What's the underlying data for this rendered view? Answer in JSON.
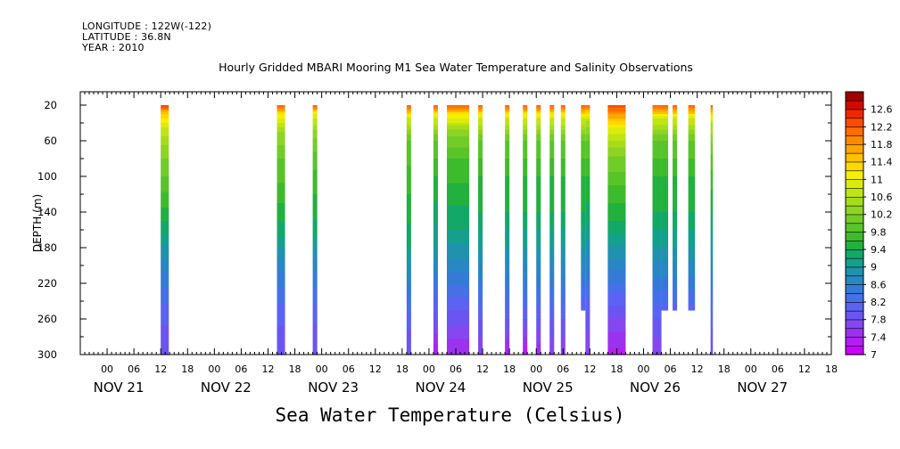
{
  "header": {
    "longitude": "LONGITUDE : 122W(-122)",
    "latitude": "LATITUDE : 36.8N",
    "year": "YEAR : 2010"
  },
  "title": "Hourly Gridded MBARI Mooring M1 Sea Water Temperature and Salinity Observations",
  "variable_title": "Sea Water Temperature (Celsius)",
  "chart_data": {
    "type": "heatmap",
    "title": "Hourly Gridded MBARI Mooring M1 Sea Water Temperature and Salinity Observations",
    "variable": "Sea Water Temperature (Celsius)",
    "xlabel": "",
    "ylabel": "DEPTH (m)",
    "y_reversed": true,
    "xlim_hours_since_nov20_18": [
      0,
      168
    ],
    "ylim": [
      300,
      5
    ],
    "x_tick_labels": [
      "00",
      "06",
      "12",
      "18",
      "00",
      "06",
      "12",
      "18",
      "00",
      "06",
      "12",
      "18",
      "00",
      "06",
      "12",
      "18",
      "00",
      "06",
      "12",
      "18",
      "00",
      "06",
      "12",
      "18",
      "00",
      "06",
      "12",
      "18"
    ],
    "date_labels": [
      "NOV 21",
      "NOV 22",
      "NOV 23",
      "NOV 24",
      "NOV 25",
      "NOV 26",
      "NOV 27"
    ],
    "y_ticks": [
      20,
      60,
      100,
      140,
      180,
      220,
      260,
      300
    ],
    "colorbar": {
      "levels": [
        7,
        7.2,
        7.4,
        7.6,
        7.8,
        8,
        8.2,
        8.4,
        8.6,
        8.8,
        9,
        9.2,
        9.4,
        9.6,
        9.8,
        10,
        10.2,
        10.4,
        10.6,
        10.8,
        11,
        11.2,
        11.4,
        11.6,
        11.8,
        12,
        12.2,
        12.4,
        12.6,
        12.8
      ],
      "tick_labels": [
        "7",
        "7.4",
        "7.8",
        "8.2",
        "8.6",
        "9",
        "9.4",
        "9.8",
        "10.2",
        "10.6",
        "11",
        "11.4",
        "11.8",
        "12.2",
        "12.6"
      ],
      "colors": [
        "#cc00ff",
        "#b41ef5",
        "#9b33ee",
        "#8447f0",
        "#6b55f2",
        "#5a63f2",
        "#4570e8",
        "#347bd8",
        "#2887c4",
        "#1f92ae",
        "#14a08c",
        "#13a868",
        "#22b03e",
        "#3ebb2c",
        "#58c42a",
        "#72cc28",
        "#8ed424",
        "#a6dc1c",
        "#c0e414",
        "#dcec0a",
        "#f5f000",
        "#ffd800",
        "#ffc000",
        "#ffa600",
        "#ff8a00",
        "#ff6c00",
        "#ff4c00",
        "#ef2800",
        "#d00a00",
        "#a00000"
      ]
    },
    "columns": [
      {
        "t0": 18.0,
        "t1": 19.8,
        "max_depth": 300,
        "profile": [
          [
            20,
            12.4
          ],
          [
            30,
            11.4
          ],
          [
            45,
            10.8
          ],
          [
            70,
            10.3
          ],
          [
            110,
            9.9
          ],
          [
            150,
            9.4
          ],
          [
            200,
            8.7
          ],
          [
            250,
            8.1
          ],
          [
            300,
            7.8
          ]
        ]
      },
      {
        "t0": 44.0,
        "t1": 45.8,
        "max_depth": 300,
        "profile": [
          [
            20,
            12.3
          ],
          [
            30,
            11.2
          ],
          [
            50,
            10.4
          ],
          [
            80,
            10.0
          ],
          [
            120,
            9.7
          ],
          [
            160,
            9.3
          ],
          [
            200,
            8.7
          ],
          [
            250,
            8.1
          ],
          [
            300,
            7.8
          ]
        ]
      },
      {
        "t0": 52.0,
        "t1": 53.0,
        "max_depth": 300,
        "profile": [
          [
            20,
            12.3
          ],
          [
            30,
            11.0
          ],
          [
            50,
            10.3
          ],
          [
            80,
            9.9
          ],
          [
            120,
            9.6
          ],
          [
            160,
            9.3
          ],
          [
            200,
            8.7
          ],
          [
            250,
            8.1
          ],
          [
            300,
            7.8
          ]
        ]
      },
      {
        "t0": 73.0,
        "t1": 74.0,
        "max_depth": 300,
        "profile": [
          [
            20,
            12.3
          ],
          [
            35,
            10.8
          ],
          [
            60,
            10.0
          ],
          [
            100,
            9.7
          ],
          [
            140,
            9.5
          ],
          [
            180,
            9.2
          ],
          [
            220,
            8.6
          ],
          [
            260,
            8.1
          ],
          [
            300,
            7.8
          ]
        ]
      },
      {
        "t0": 79.0,
        "t1": 80.0,
        "max_depth": 300,
        "profile": [
          [
            20,
            12.2
          ],
          [
            35,
            10.8
          ],
          [
            60,
            10.0
          ],
          [
            100,
            9.6
          ],
          [
            140,
            9.3
          ],
          [
            180,
            9.0
          ],
          [
            220,
            8.4
          ],
          [
            260,
            7.9
          ],
          [
            300,
            7.2
          ]
        ]
      },
      {
        "t0": 82.0,
        "t1": 87.0,
        "max_depth": 300,
        "profile": [
          [
            20,
            12.3
          ],
          [
            30,
            11.2
          ],
          [
            50,
            10.3
          ],
          [
            80,
            9.8
          ],
          [
            120,
            9.5
          ],
          [
            160,
            9.2
          ],
          [
            200,
            8.7
          ],
          [
            250,
            8.0
          ],
          [
            300,
            7.4
          ]
        ]
      },
      {
        "t0": 89.0,
        "t1": 90.0,
        "max_depth": 300,
        "profile": [
          [
            20,
            12.2
          ],
          [
            35,
            10.8
          ],
          [
            60,
            10.0
          ],
          [
            100,
            9.6
          ],
          [
            140,
            9.4
          ],
          [
            180,
            9.0
          ],
          [
            220,
            8.5
          ],
          [
            260,
            8.0
          ],
          [
            300,
            7.6
          ]
        ]
      },
      {
        "t0": 95.0,
        "t1": 96.0,
        "max_depth": 300,
        "profile": [
          [
            20,
            12.2
          ],
          [
            35,
            10.8
          ],
          [
            60,
            10.0
          ],
          [
            100,
            9.6
          ],
          [
            140,
            9.4
          ],
          [
            180,
            9.0
          ],
          [
            220,
            8.5
          ],
          [
            260,
            8.0
          ],
          [
            300,
            7.3
          ]
        ]
      },
      {
        "t0": 99.0,
        "t1": 100.0,
        "max_depth": 300,
        "profile": [
          [
            20,
            12.2
          ],
          [
            35,
            10.8
          ],
          [
            60,
            10.0
          ],
          [
            100,
            9.6
          ],
          [
            140,
            9.4
          ],
          [
            180,
            9.0
          ],
          [
            220,
            8.5
          ],
          [
            260,
            8.0
          ],
          [
            300,
            7.2
          ]
        ]
      },
      {
        "t0": 102.0,
        "t1": 103.0,
        "max_depth": 300,
        "profile": [
          [
            20,
            12.2
          ],
          [
            35,
            10.8
          ],
          [
            60,
            10.0
          ],
          [
            100,
            9.6
          ],
          [
            140,
            9.4
          ],
          [
            180,
            9.0
          ],
          [
            220,
            8.5
          ],
          [
            260,
            8.0
          ],
          [
            300,
            7.4
          ]
        ]
      },
      {
        "t0": 105.0,
        "t1": 106.0,
        "max_depth": 300,
        "profile": [
          [
            20,
            12.2
          ],
          [
            35,
            10.8
          ],
          [
            60,
            10.0
          ],
          [
            100,
            9.6
          ],
          [
            140,
            9.4
          ],
          [
            180,
            9.0
          ],
          [
            220,
            8.5
          ],
          [
            260,
            8.0
          ],
          [
            300,
            7.6
          ]
        ]
      },
      {
        "t0": 107.5,
        "t1": 108.5,
        "max_depth": 300,
        "profile": [
          [
            20,
            12.2
          ],
          [
            35,
            10.8
          ],
          [
            60,
            10.0
          ],
          [
            100,
            9.6
          ],
          [
            140,
            9.4
          ],
          [
            180,
            9.0
          ],
          [
            220,
            8.5
          ],
          [
            260,
            8.0
          ],
          [
            300,
            7.6
          ]
        ]
      },
      {
        "t0": 112.0,
        "t1": 113.0,
        "max_depth": 250,
        "profile": [
          [
            20,
            12.3
          ],
          [
            35,
            10.8
          ],
          [
            60,
            10.0
          ],
          [
            100,
            9.6
          ],
          [
            140,
            9.4
          ],
          [
            180,
            9.0
          ],
          [
            220,
            8.5
          ],
          [
            250,
            8.0
          ]
        ]
      },
      {
        "t0": 113.0,
        "t1": 114.0,
        "max_depth": 300,
        "profile": [
          [
            20,
            12.2
          ],
          [
            35,
            10.7
          ],
          [
            60,
            10.0
          ],
          [
            100,
            9.6
          ],
          [
            140,
            9.3
          ],
          [
            180,
            8.9
          ],
          [
            220,
            8.4
          ],
          [
            260,
            7.9
          ],
          [
            300,
            7.6
          ]
        ]
      },
      {
        "t0": 118.0,
        "t1": 122.0,
        "max_depth": 300,
        "profile": [
          [
            20,
            12.4
          ],
          [
            30,
            11.8
          ],
          [
            45,
            11.0
          ],
          [
            70,
            10.3
          ],
          [
            110,
            9.8
          ],
          [
            150,
            9.4
          ],
          [
            200,
            8.7
          ],
          [
            250,
            7.9
          ],
          [
            300,
            7.3
          ]
        ]
      },
      {
        "t0": 128.0,
        "t1": 130.0,
        "max_depth": 300,
        "profile": [
          [
            20,
            12.3
          ],
          [
            35,
            10.8
          ],
          [
            60,
            10.0
          ],
          [
            100,
            9.6
          ],
          [
            140,
            9.4
          ],
          [
            180,
            9.0
          ],
          [
            220,
            8.5
          ],
          [
            260,
            8.0
          ],
          [
            300,
            7.6
          ]
        ]
      },
      {
        "t0": 130.0,
        "t1": 131.5,
        "max_depth": 250,
        "profile": [
          [
            20,
            12.3
          ],
          [
            35,
            10.8
          ],
          [
            60,
            10.0
          ],
          [
            100,
            9.6
          ],
          [
            140,
            9.4
          ],
          [
            180,
            9.0
          ],
          [
            220,
            8.5
          ],
          [
            250,
            8.1
          ]
        ]
      },
      {
        "t0": 132.5,
        "t1": 133.5,
        "max_depth": 250,
        "profile": [
          [
            20,
            12.3
          ],
          [
            35,
            10.8
          ],
          [
            60,
            10.0
          ],
          [
            100,
            9.6
          ],
          [
            140,
            9.4
          ],
          [
            180,
            9.0
          ],
          [
            220,
            8.5
          ],
          [
            250,
            8.1
          ]
        ]
      },
      {
        "t0": 136.0,
        "t1": 137.5,
        "max_depth": 250,
        "profile": [
          [
            20,
            12.3
          ],
          [
            35,
            10.8
          ],
          [
            60,
            10.0
          ],
          [
            100,
            9.6
          ],
          [
            140,
            9.4
          ],
          [
            180,
            9.0
          ],
          [
            220,
            8.5
          ],
          [
            250,
            8.1
          ]
        ]
      },
      {
        "t0": 141.0,
        "t1": 141.5,
        "max_depth": 300,
        "profile": [
          [
            20,
            12.3
          ],
          [
            40,
            10.6
          ],
          [
            80,
            9.9
          ],
          [
            140,
            9.4
          ],
          [
            200,
            8.7
          ],
          [
            260,
            8.1
          ],
          [
            300,
            7.8
          ]
        ]
      }
    ]
  }
}
